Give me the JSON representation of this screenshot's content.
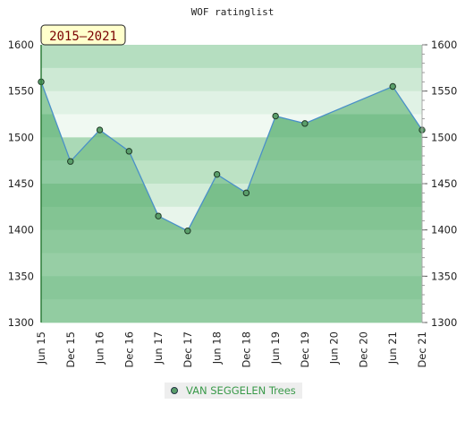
{
  "chart_data": {
    "type": "area",
    "title": "WOF ratinglist",
    "badge": "2015–2021",
    "x": [
      "Jun 15",
      "Dec 15",
      "Jun 16",
      "Dec 16",
      "Jun 17",
      "Dec 17",
      "Jun 18",
      "Dec 18",
      "Jun 19",
      "Dec 19",
      "Jun 20",
      "Dec 20",
      "Jun 21",
      "Dec 21"
    ],
    "series": [
      {
        "name": "VAN SEGGELEN Trees",
        "points": [
          {
            "x": "Jun 15",
            "y": 1560
          },
          {
            "x": "Dec 15",
            "y": 1474
          },
          {
            "x": "Jun 16",
            "y": 1508
          },
          {
            "x": "Dec 16",
            "y": 1485
          },
          {
            "x": "Jun 17",
            "y": 1415
          },
          {
            "x": "Dec 17",
            "y": 1399
          },
          {
            "x": "Jun 18",
            "y": 1460
          },
          {
            "x": "Dec 18",
            "y": 1440
          },
          {
            "x": "Jun 19",
            "y": 1523
          },
          {
            "x": "Dec 19",
            "y": 1515
          },
          {
            "x": "Jun 21",
            "y": 1555
          },
          {
            "x": "Dec 21",
            "y": 1508
          }
        ]
      }
    ],
    "yticks": [
      1300,
      1350,
      1400,
      1450,
      1500,
      1550,
      1600
    ],
    "ylim": [
      1300,
      1600
    ],
    "colors": {
      "line": "#4a90c8",
      "area": "#7ac08a",
      "marker": "#5a9e6a",
      "legend_bg": "#eeeeee",
      "badge_bg": "#ffffcc"
    }
  }
}
